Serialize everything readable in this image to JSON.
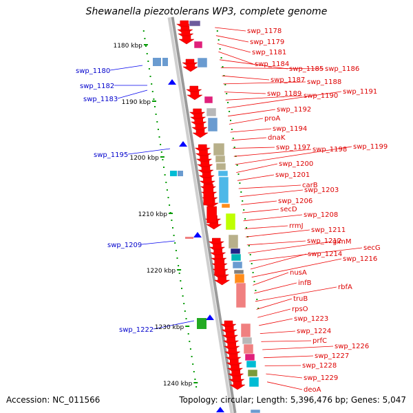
{
  "title": "Shewanella piezotolerans WP3, complete genome",
  "accession": "Accession: NC_011566",
  "genome_info": "Topology: circular; Length: 5,396,476 bp; Genes: 5,047",
  "colors": {
    "forward_label": "#dd0000",
    "reverse_label": "#0000cc",
    "tick": "#009900",
    "backbone": "#999999"
  },
  "scale_labels": [
    "1180 kbp",
    "1190 kbp",
    "1200 kbp",
    "1210 kbp",
    "1220 kbp",
    "1230 kbp",
    "1240 kbp"
  ],
  "forward_genes": [
    "swp_1178",
    "swp_1179",
    "swp_1181",
    "swp_1184",
    "swp_1185",
    "swp_1186",
    "swp_1187",
    "swp_1188",
    "swp_1189",
    "swp_1190",
    "swp_1191",
    "swp_1192",
    "proA",
    "swp_1194",
    "dnaK",
    "swp_1197",
    "swp_1198",
    "swp_1199",
    "swp_1200",
    "swp_1201",
    "carB",
    "swp_1203",
    "swp_1206",
    "secD",
    "swp_1208",
    "rrmJ",
    "swp_1211",
    "swp_1212",
    "glmM",
    "secG",
    "swp_1214",
    "swp_1216",
    "nusA",
    "infB",
    "rbfA",
    "truB",
    "rpsO",
    "swp_1223",
    "swp_1224",
    "prfC",
    "swp_1226",
    "swp_1227",
    "swp_1228",
    "swp_1229",
    "deoA"
  ],
  "reverse_genes": [
    "swp_1180",
    "swp_1182",
    "swp_1183",
    "swp_1195",
    "swp_1209",
    "swp_1222"
  ]
}
